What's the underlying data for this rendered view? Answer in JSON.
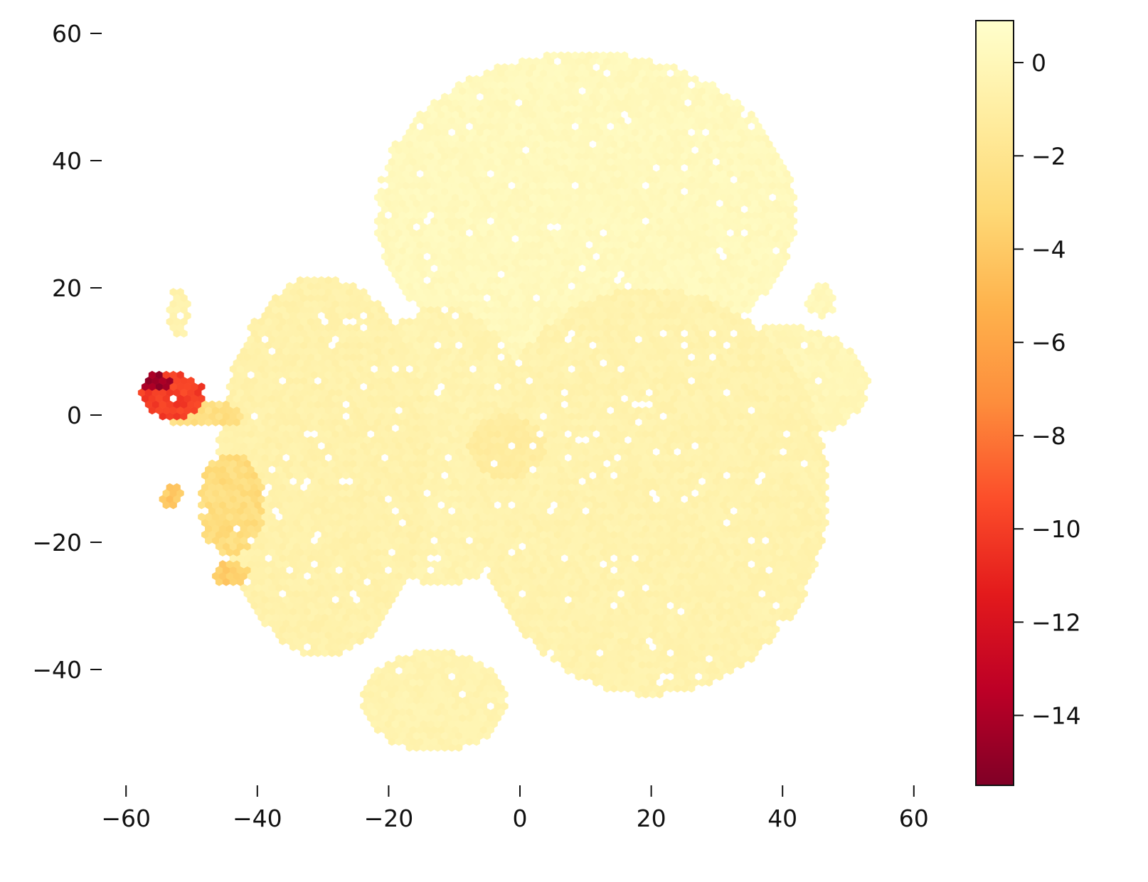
{
  "chart_data": {
    "type": "heatmap",
    "subtype": "hexbin",
    "title": "",
    "xlabel": "",
    "ylabel": "",
    "xlim": [
      -65,
      68
    ],
    "ylim": [
      -57,
      64
    ],
    "x_ticks": [
      -60,
      -40,
      -20,
      0,
      20,
      40,
      60
    ],
    "x_tick_labels": [
      "−60",
      "−40",
      "−20",
      "0",
      "20",
      "40",
      "60"
    ],
    "y_ticks": [
      60,
      40,
      20,
      0,
      -20,
      -40
    ],
    "y_tick_labels": [
      "60",
      "40",
      "20",
      "0",
      "−20",
      "−40"
    ],
    "grid": false,
    "colorbar": {
      "colormap": "YlOrRd_r",
      "range": [
        -15.5,
        0.9
      ],
      "ticks": [
        0,
        -2,
        -4,
        -6,
        -8,
        -10,
        -12,
        -14
      ],
      "tick_labels": [
        "0",
        "−2",
        "−4",
        "−6",
        "−8",
        "−10",
        "−12",
        "−14"
      ],
      "stops": [
        "#800026",
        "#bd0026",
        "#e31a1c",
        "#fc4e2a",
        "#fd8d3c",
        "#feb24c",
        "#fed976",
        "#ffeda0",
        "#ffffcc"
      ]
    },
    "regions": [
      {
        "name": "top-cluster",
        "cx": 10,
        "cy": 32,
        "rx": 32,
        "ry": 25,
        "value": 0.2
      },
      {
        "name": "left-cluster",
        "cx": -30,
        "cy": -8,
        "rx": 16,
        "ry": 30,
        "value": -0.6
      },
      {
        "name": "center-cluster",
        "cx": -12,
        "cy": -5,
        "rx": 14,
        "ry": 22,
        "value": -0.4
      },
      {
        "name": "right-cluster",
        "cx": 20,
        "cy": -12,
        "rx": 27,
        "ry": 32,
        "value": -0.5
      },
      {
        "name": "far-right-cluster",
        "cx": 40,
        "cy": 5,
        "rx": 13,
        "ry": 9,
        "value": -0.1
      },
      {
        "name": "bottom-cluster",
        "cx": -13,
        "cy": -45,
        "rx": 11,
        "ry": 8,
        "value": -0.4
      },
      {
        "name": "small-right-cluster",
        "cx": 46,
        "cy": 18,
        "rx": 2.5,
        "ry": 2.5,
        "value": 0.1
      },
      {
        "name": "left-bridge",
        "cx": -48,
        "cy": 0,
        "rx": 6,
        "ry": 2,
        "value": -2.5
      },
      {
        "name": "hot-spot",
        "cx": -53,
        "cy": 3,
        "rx": 5,
        "ry": 3.5,
        "value": -10
      },
      {
        "name": "hot-core",
        "cx": -55,
        "cy": 5,
        "rx": 2.3,
        "ry": 1.5,
        "value": -14.5
      },
      {
        "name": "left-lower-warm",
        "cx": -44,
        "cy": -14,
        "rx": 5,
        "ry": 8,
        "value": -2.8
      },
      {
        "name": "left-lower-warm-2",
        "cx": -44,
        "cy": -25,
        "rx": 3,
        "ry": 2,
        "value": -3.8
      },
      {
        "name": "left-lower-warm-3",
        "cx": -53,
        "cy": -13,
        "rx": 1.5,
        "ry": 2,
        "value": -4.0
      },
      {
        "name": "center-warm",
        "cx": -2,
        "cy": -5,
        "rx": 6,
        "ry": 5,
        "value": -1.2
      },
      {
        "name": "upper-left-islet",
        "cx": -52,
        "cy": 16,
        "rx": 1.5,
        "ry": 4,
        "value": -0.5
      }
    ]
  }
}
